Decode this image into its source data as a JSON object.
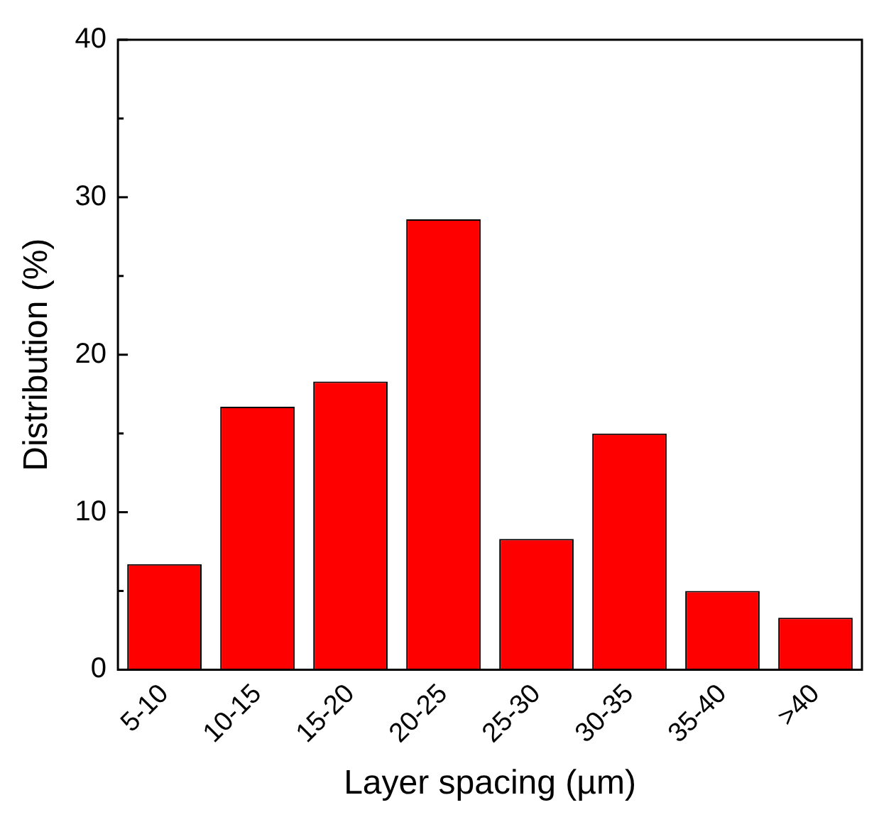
{
  "chart_data": {
    "type": "bar",
    "xlabel": "Layer spacing (µm)",
    "ylabel": "Distribution (%)",
    "categories": [
      "5-10",
      "10-15",
      "15-20",
      "20-25",
      "25-30",
      "30-35",
      "35-40",
      ">40"
    ],
    "values": [
      6.7,
      16.7,
      18.3,
      28.6,
      8.3,
      15.0,
      5.0,
      3.3
    ],
    "color": "#ff0000",
    "ylim": [
      0,
      40
    ],
    "yticks": [
      0,
      {
        "value": 5,
        "label": null
      },
      10,
      {
        "value": 15,
        "label": null
      },
      20,
      {
        "value": 25,
        "label": null
      },
      30,
      {
        "value": 35,
        "label": null
      },
      40
    ],
    "grid": false,
    "legend": false
  }
}
